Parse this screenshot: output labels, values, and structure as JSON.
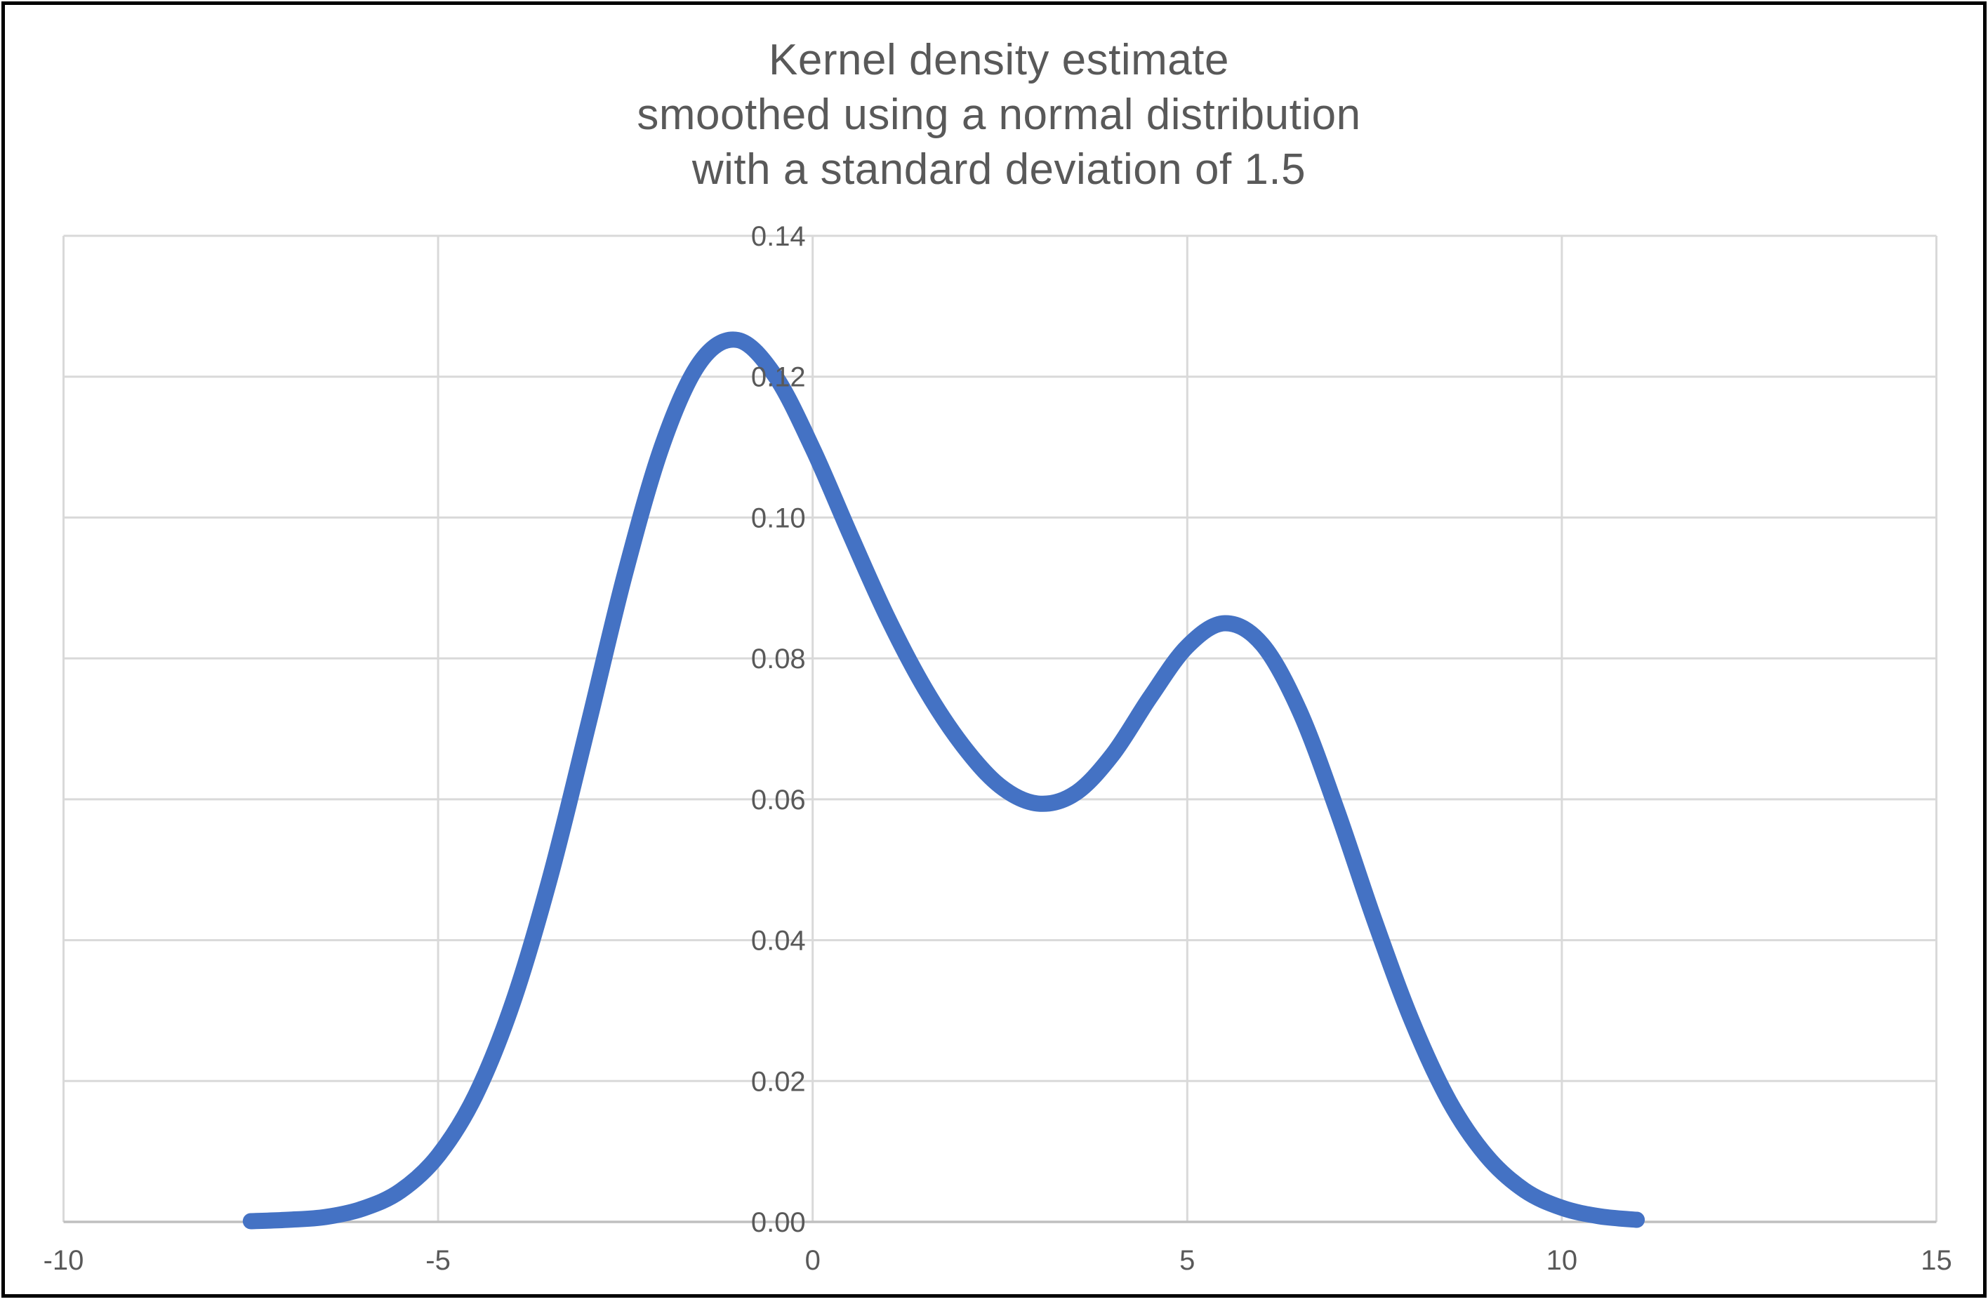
{
  "chart": {
    "title_lines": [
      "Kernel density estimate",
      "smoothed using a normal distribution",
      "with a standard deviation of 1.5"
    ]
  },
  "chart_data": {
    "type": "line",
    "title": "Kernel density estimate smoothed using a normal distribution with a standard deviation of 1.5",
    "xlabel": "",
    "ylabel": "",
    "xlim": [
      -10,
      15
    ],
    "ylim": [
      0,
      0.14
    ],
    "grid": true,
    "legend": "none",
    "x_ticks": [
      {
        "value": -10,
        "label": "-10"
      },
      {
        "value": -5,
        "label": "-5"
      },
      {
        "value": 0,
        "label": "0"
      },
      {
        "value": 5,
        "label": "5"
      },
      {
        "value": 10,
        "label": "10"
      },
      {
        "value": 15,
        "label": "15"
      }
    ],
    "y_ticks": [
      {
        "value": 0.0,
        "label": "0.00"
      },
      {
        "value": 0.02,
        "label": "0.02"
      },
      {
        "value": 0.04,
        "label": "0.04"
      },
      {
        "value": 0.06,
        "label": "0.06"
      },
      {
        "value": 0.08,
        "label": "0.08"
      },
      {
        "value": 0.1,
        "label": "0.10"
      },
      {
        "value": 0.12,
        "label": "0.12"
      },
      {
        "value": 0.14,
        "label": "0.14"
      }
    ],
    "series": [
      {
        "name": "Kernel density estimate (normal kernel, standard deviation 1.5)",
        "x": [
          -7.5,
          -7,
          -6.5,
          -6,
          -5.5,
          -5,
          -4.5,
          -4,
          -3.5,
          -3,
          -2.5,
          -2,
          -1.5,
          -1,
          -0.5,
          0,
          0.5,
          1,
          1.5,
          2,
          2.5,
          3,
          3.5,
          4,
          4.5,
          5,
          5.5,
          6,
          6.5,
          7,
          7.5,
          8,
          8.5,
          9,
          9.5,
          10,
          10.5,
          11
        ],
        "y": [
          0.0001,
          0.0003,
          0.0007,
          0.0019,
          0.0044,
          0.0094,
          0.018,
          0.0312,
          0.0491,
          0.0704,
          0.0922,
          0.1105,
          0.1221,
          0.1252,
          0.1201,
          0.1098,
          0.0976,
          0.0858,
          0.0757,
          0.0677,
          0.0619,
          0.0594,
          0.0608,
          0.0663,
          0.0744,
          0.0817,
          0.085,
          0.082,
          0.0725,
          0.0584,
          0.0428,
          0.0285,
          0.0171,
          0.0093,
          0.0045,
          0.002,
          0.0008,
          0.0003
        ]
      }
    ],
    "colors": {
      "line": "#4472C4",
      "gridline": "#D9D9D9",
      "axis_line": "#BFBFBF",
      "tick_label": "#595959",
      "title": "#595959",
      "background": "#FFFFFF",
      "border": "#000000"
    }
  }
}
